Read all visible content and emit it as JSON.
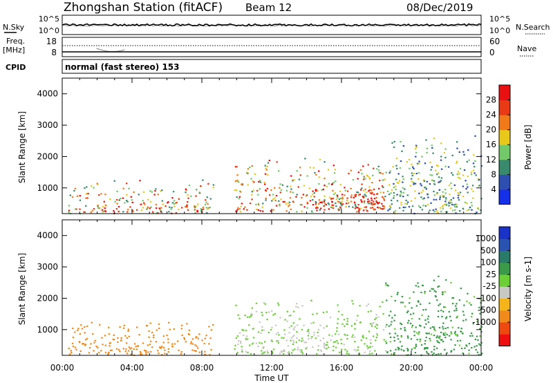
{
  "header": {
    "station": "Zhongshan Station (fitACF)",
    "beam": "Beam 12",
    "date": "08/Dec/2019"
  },
  "noise_panel": {
    "left_label": "N.Sky",
    "left_ticks": [
      "10^5",
      "10^0"
    ],
    "right_ticks": [
      "10^5",
      "10^0"
    ],
    "right_label": "N.Search"
  },
  "freq_panel": {
    "label_line1": "Freq.",
    "label_line2": "[MHz]",
    "left_ticks": [
      "18",
      "8"
    ],
    "right_ticks": [
      "60",
      "0"
    ],
    "right_label": "Nave"
  },
  "cpid_panel": {
    "label": "CPID",
    "mode_text": "normal (fast stereo) 153"
  },
  "colors": {
    "power": [
      "#1530e8",
      "#2f4fb0",
      "#3a8a6e",
      "#73c86a",
      "#e8c81a",
      "#f07a1a",
      "#e83a14",
      "#e81010"
    ],
    "velocity": [
      "#ee1010",
      "#ee4a10",
      "#f08a1a",
      "#f4b41a",
      "#c8c8c4",
      "#6ccf38",
      "#3a9a4a",
      "#2a7a6a",
      "#2a52b0",
      "#1a32c8"
    ]
  },
  "chart_data": [
    {
      "type": "heatmap",
      "title": "",
      "ylabel": "Slant Range [km]",
      "xlabel": "",
      "xlim": [
        "00:00",
        "00:00"
      ],
      "ylim": [
        180,
        4500
      ],
      "yticks": [
        "1000",
        "2000",
        "3000",
        "4000"
      ],
      "xticks": [
        "00:00",
        "04:00",
        "08:00",
        "12:00",
        "16:00",
        "20:00",
        "00:00"
      ],
      "grid": false,
      "colorbar": {
        "label": "Power [dB]",
        "range": [
          0,
          32
        ],
        "ticks": [
          "4",
          "8",
          "12",
          "16",
          "20",
          "24",
          "28"
        ]
      },
      "features": [
        {
          "start": "00:20",
          "end": "08:40",
          "range_km": [
            200,
            1300
          ],
          "level_db": [
            8,
            28
          ]
        },
        {
          "start": "09:50",
          "end": "18:30",
          "range_km": [
            250,
            2000
          ],
          "level_db": [
            8,
            30
          ]
        },
        {
          "start": "14:00",
          "end": "18:30",
          "range_km": [
            300,
            1100
          ],
          "level_db": [
            20,
            30
          ]
        },
        {
          "start": "18:30",
          "end": "24:00",
          "range_km": [
            200,
            2800
          ],
          "level_db": [
            4,
            16
          ]
        }
      ]
    },
    {
      "type": "heatmap",
      "title": "",
      "ylabel": "Slant Range [km]",
      "xlabel": "Time UT",
      "xlim": [
        "00:00",
        "00:00"
      ],
      "ylim": [
        180,
        4500
      ],
      "yticks": [
        "1000",
        "2000",
        "3000",
        "4000"
      ],
      "xticks": [
        "00:00",
        "04:00",
        "08:00",
        "12:00",
        "16:00",
        "20:00",
        "00:00"
      ],
      "grid": false,
      "colorbar": {
        "label": "Velocity [m s-1]",
        "tick_labels": [
          "1000",
          "500",
          "100",
          "25",
          "-25",
          "-100",
          "-500",
          "-1000"
        ]
      },
      "features": [
        {
          "start": "00:20",
          "end": "08:40",
          "range_km": [
            200,
            1300
          ],
          "velocity": [
            -500,
            -100
          ]
        },
        {
          "start": "09:50",
          "end": "18:30",
          "range_km": [
            250,
            2000
          ],
          "velocity": [
            -25,
            100
          ]
        },
        {
          "start": "18:30",
          "end": "24:00",
          "range_km": [
            200,
            2800
          ],
          "velocity": [
            25,
            500
          ]
        }
      ]
    }
  ]
}
